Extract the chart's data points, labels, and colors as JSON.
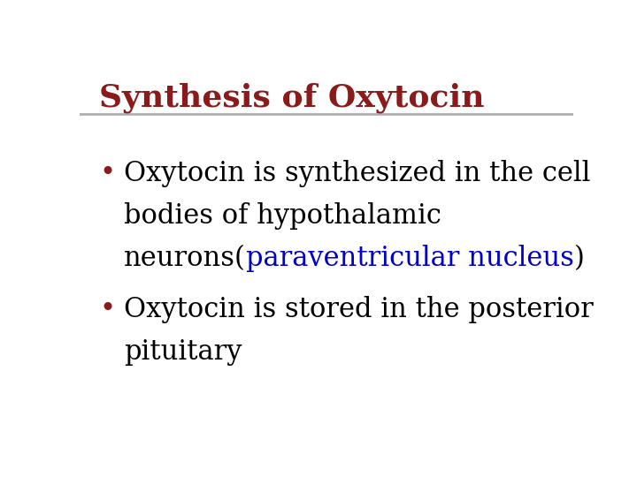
{
  "title": "Synthesis of Oxytocin",
  "title_color": "#8B1A1A",
  "title_fontsize": 26,
  "title_fontstyle": "bold",
  "separator_color": "#B0B0B0",
  "background_color": "#FFFFFF",
  "bullet_color": "#8B1A1A",
  "bullet1_part1": "Oxytocin is synthesized in the cell",
  "bullet1_part2": "bodies of hypothalamic",
  "bullet1_part3_black1": "neurons(",
  "bullet1_part3_blue": "paraventricular nucleus",
  "bullet1_part3_black2": ")",
  "bullet2_line1": "Oxytocin is stored in the posterior",
  "bullet2_line2": "pituitary",
  "text_color": "#000000",
  "blue_color": "#0000CC",
  "text_fontsize": 22,
  "text_family": "DejaVu Serif",
  "bullet_fontsize": 22
}
